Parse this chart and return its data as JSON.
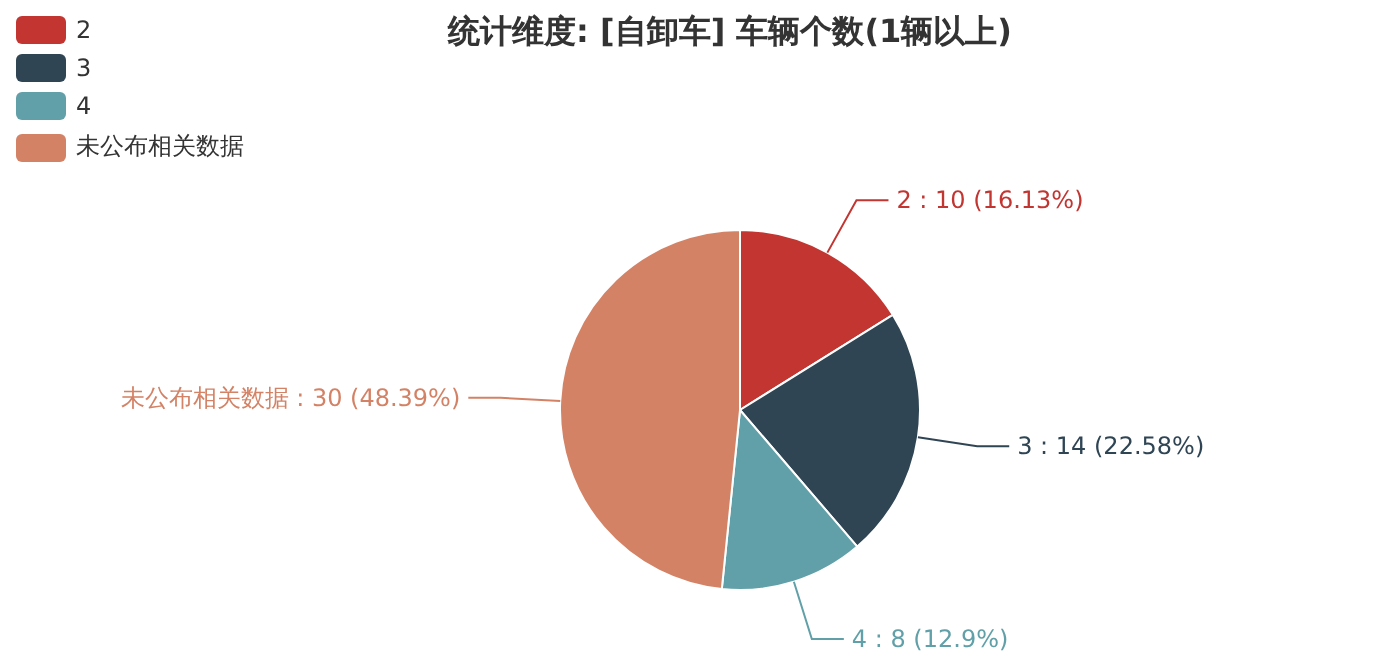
{
  "chart_data": {
    "type": "pie",
    "title": "统计维度: [自卸车] 车辆个数(1辆以上)",
    "categories": [
      "2",
      "3",
      "4",
      "未公布相关数据"
    ],
    "values": [
      10,
      14,
      8,
      30
    ],
    "colors": [
      "#c23531",
      "#2f4554",
      "#61a0a8",
      "#d48265"
    ],
    "value_labels": [
      "2 : 10 (16.13%)",
      "3 : 14 (22.58%)",
      "4 : 8 (12.9%)",
      "未公布相关数据 : 30 (48.39%)"
    ],
    "legend": "top left"
  }
}
